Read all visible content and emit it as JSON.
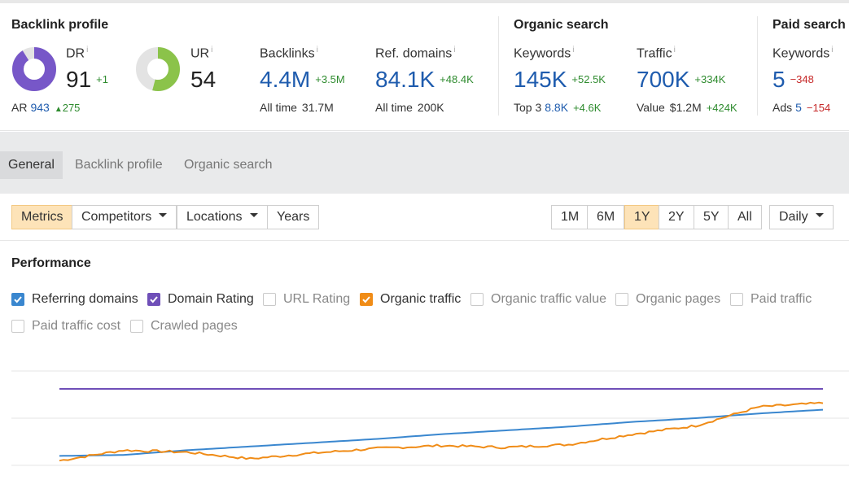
{
  "colors": {
    "blue_value": "#1f5cae",
    "dr_purple": "#7757c8",
    "ur_green": "#8bc34a",
    "positive": "#2e8b2e",
    "negative": "#c62828",
    "referring_domains_line": "#3a87cf",
    "domain_rating_line": "#6f4fb8",
    "organic_traffic_line": "#f08c17",
    "active_button": "#fde3b8"
  },
  "backlink_profile": {
    "title": "Backlink profile",
    "dr": {
      "label": "DR",
      "info": "i",
      "value": "91",
      "delta": "+1",
      "fill_fraction": 0.91
    },
    "ar": {
      "label": "AR",
      "value": "943",
      "delta": "275",
      "delta_icon": "triangle-up-icon"
    },
    "ur": {
      "label": "UR",
      "info": "i",
      "value": "54",
      "fill_fraction": 0.54
    },
    "backlinks": {
      "label": "Backlinks",
      "info": "i",
      "value": "4.4M",
      "delta": "+3.5M",
      "sub_label": "All time",
      "sub_value": "31.7M"
    },
    "ref_domains": {
      "label": "Ref. domains",
      "info": "i",
      "value": "84.1K",
      "delta": "+48.4K",
      "sub_label": "All time",
      "sub_value": "200K"
    }
  },
  "organic_search": {
    "title": "Organic search",
    "keywords": {
      "label": "Keywords",
      "info": "i",
      "value": "145K",
      "delta": "+52.5K",
      "sub_label": "Top 3",
      "sub_value": "8.8K",
      "sub_delta": "+4.6K"
    },
    "traffic": {
      "label": "Traffic",
      "info": "i",
      "value": "700K",
      "delta": "+334K",
      "sub_label": "Value",
      "sub_value": "$1.2M",
      "sub_delta": "+424K"
    }
  },
  "paid_search": {
    "title": "Paid search",
    "keywords": {
      "label": "Keywords",
      "info": "i",
      "value": "5",
      "delta": "−348",
      "sub_label": "Ads",
      "sub_value": "5",
      "sub_delta": "−154"
    }
  },
  "tabs": [
    {
      "label": "General",
      "active": true
    },
    {
      "label": "Backlink profile",
      "active": false
    },
    {
      "label": "Organic search",
      "active": false
    }
  ],
  "toolbar": {
    "left_buttons": [
      {
        "label": "Metrics",
        "active": true,
        "dropdown": false
      },
      {
        "label": "Competitors",
        "active": false,
        "dropdown": true
      },
      {
        "label": "Locations",
        "active": false,
        "dropdown": true
      },
      {
        "label": "Years",
        "active": false,
        "dropdown": false
      }
    ],
    "ranges": [
      {
        "label": "1M",
        "active": false
      },
      {
        "label": "6M",
        "active": false
      },
      {
        "label": "1Y",
        "active": true
      },
      {
        "label": "2Y",
        "active": false
      },
      {
        "label": "5Y",
        "active": false
      },
      {
        "label": "All",
        "active": false
      }
    ],
    "interval": {
      "label": "Daily",
      "dropdown": true
    }
  },
  "performance": {
    "title": "Performance",
    "checkboxes": [
      {
        "label": "Referring domains",
        "checked": true,
        "color": "#3a87cf"
      },
      {
        "label": "Domain Rating",
        "checked": true,
        "color": "#6f4fb8"
      },
      {
        "label": "URL Rating",
        "checked": false
      },
      {
        "label": "Organic traffic",
        "checked": true,
        "color": "#f08c17"
      },
      {
        "label": "Organic traffic value",
        "checked": false
      },
      {
        "label": "Organic pages",
        "checked": false
      },
      {
        "label": "Paid traffic",
        "checked": false
      },
      {
        "label": "Paid traffic cost",
        "checked": false
      },
      {
        "label": "Crawled pages",
        "checked": false
      }
    ]
  },
  "chart_data": {
    "type": "line",
    "title": "",
    "xlabel": "",
    "ylabel": "",
    "ylim": [
      0,
      1
    ],
    "grid": true,
    "series": [
      {
        "name": "Domain Rating",
        "color": "#6f4fb8",
        "values": [
          0.81,
          0.81,
          0.81,
          0.81,
          0.81,
          0.81,
          0.81,
          0.81,
          0.81,
          0.81,
          0.81,
          0.81,
          0.81
        ]
      },
      {
        "name": "Referring domains",
        "color": "#3a87cf",
        "values": [
          0.1,
          0.11,
          0.16,
          0.2,
          0.24,
          0.28,
          0.33,
          0.37,
          0.41,
          0.46,
          0.5,
          0.55,
          0.59
        ]
      },
      {
        "name": "Organic traffic",
        "color": "#f08c17",
        "values": [
          0.05,
          0.16,
          0.14,
          0.07,
          0.13,
          0.18,
          0.21,
          0.19,
          0.22,
          0.33,
          0.42,
          0.62,
          0.66
        ]
      }
    ]
  }
}
